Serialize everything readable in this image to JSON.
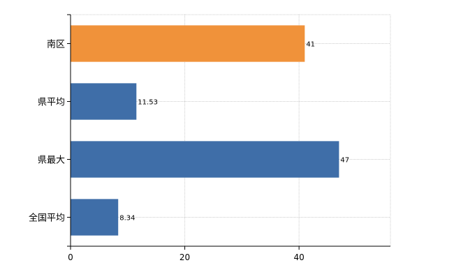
{
  "chart_data": {
    "type": "bar",
    "orientation": "horizontal",
    "categories": [
      "南区",
      "県平均",
      "県最大",
      "全国平均"
    ],
    "values": [
      41,
      11.53,
      47,
      8.34
    ],
    "value_labels": [
      "41",
      "11.53",
      "47",
      "8.34"
    ],
    "bar_colors": [
      "#F0923A",
      "#3F6EA8",
      "#3F6EA8",
      "#3F6EA8"
    ],
    "x_ticks": [
      0,
      20,
      40
    ],
    "x_tick_labels": [
      "0",
      "20",
      "40"
    ],
    "xlim": [
      0,
      56
    ],
    "grid": true,
    "title": "",
    "xlabel": "",
    "ylabel": ""
  }
}
